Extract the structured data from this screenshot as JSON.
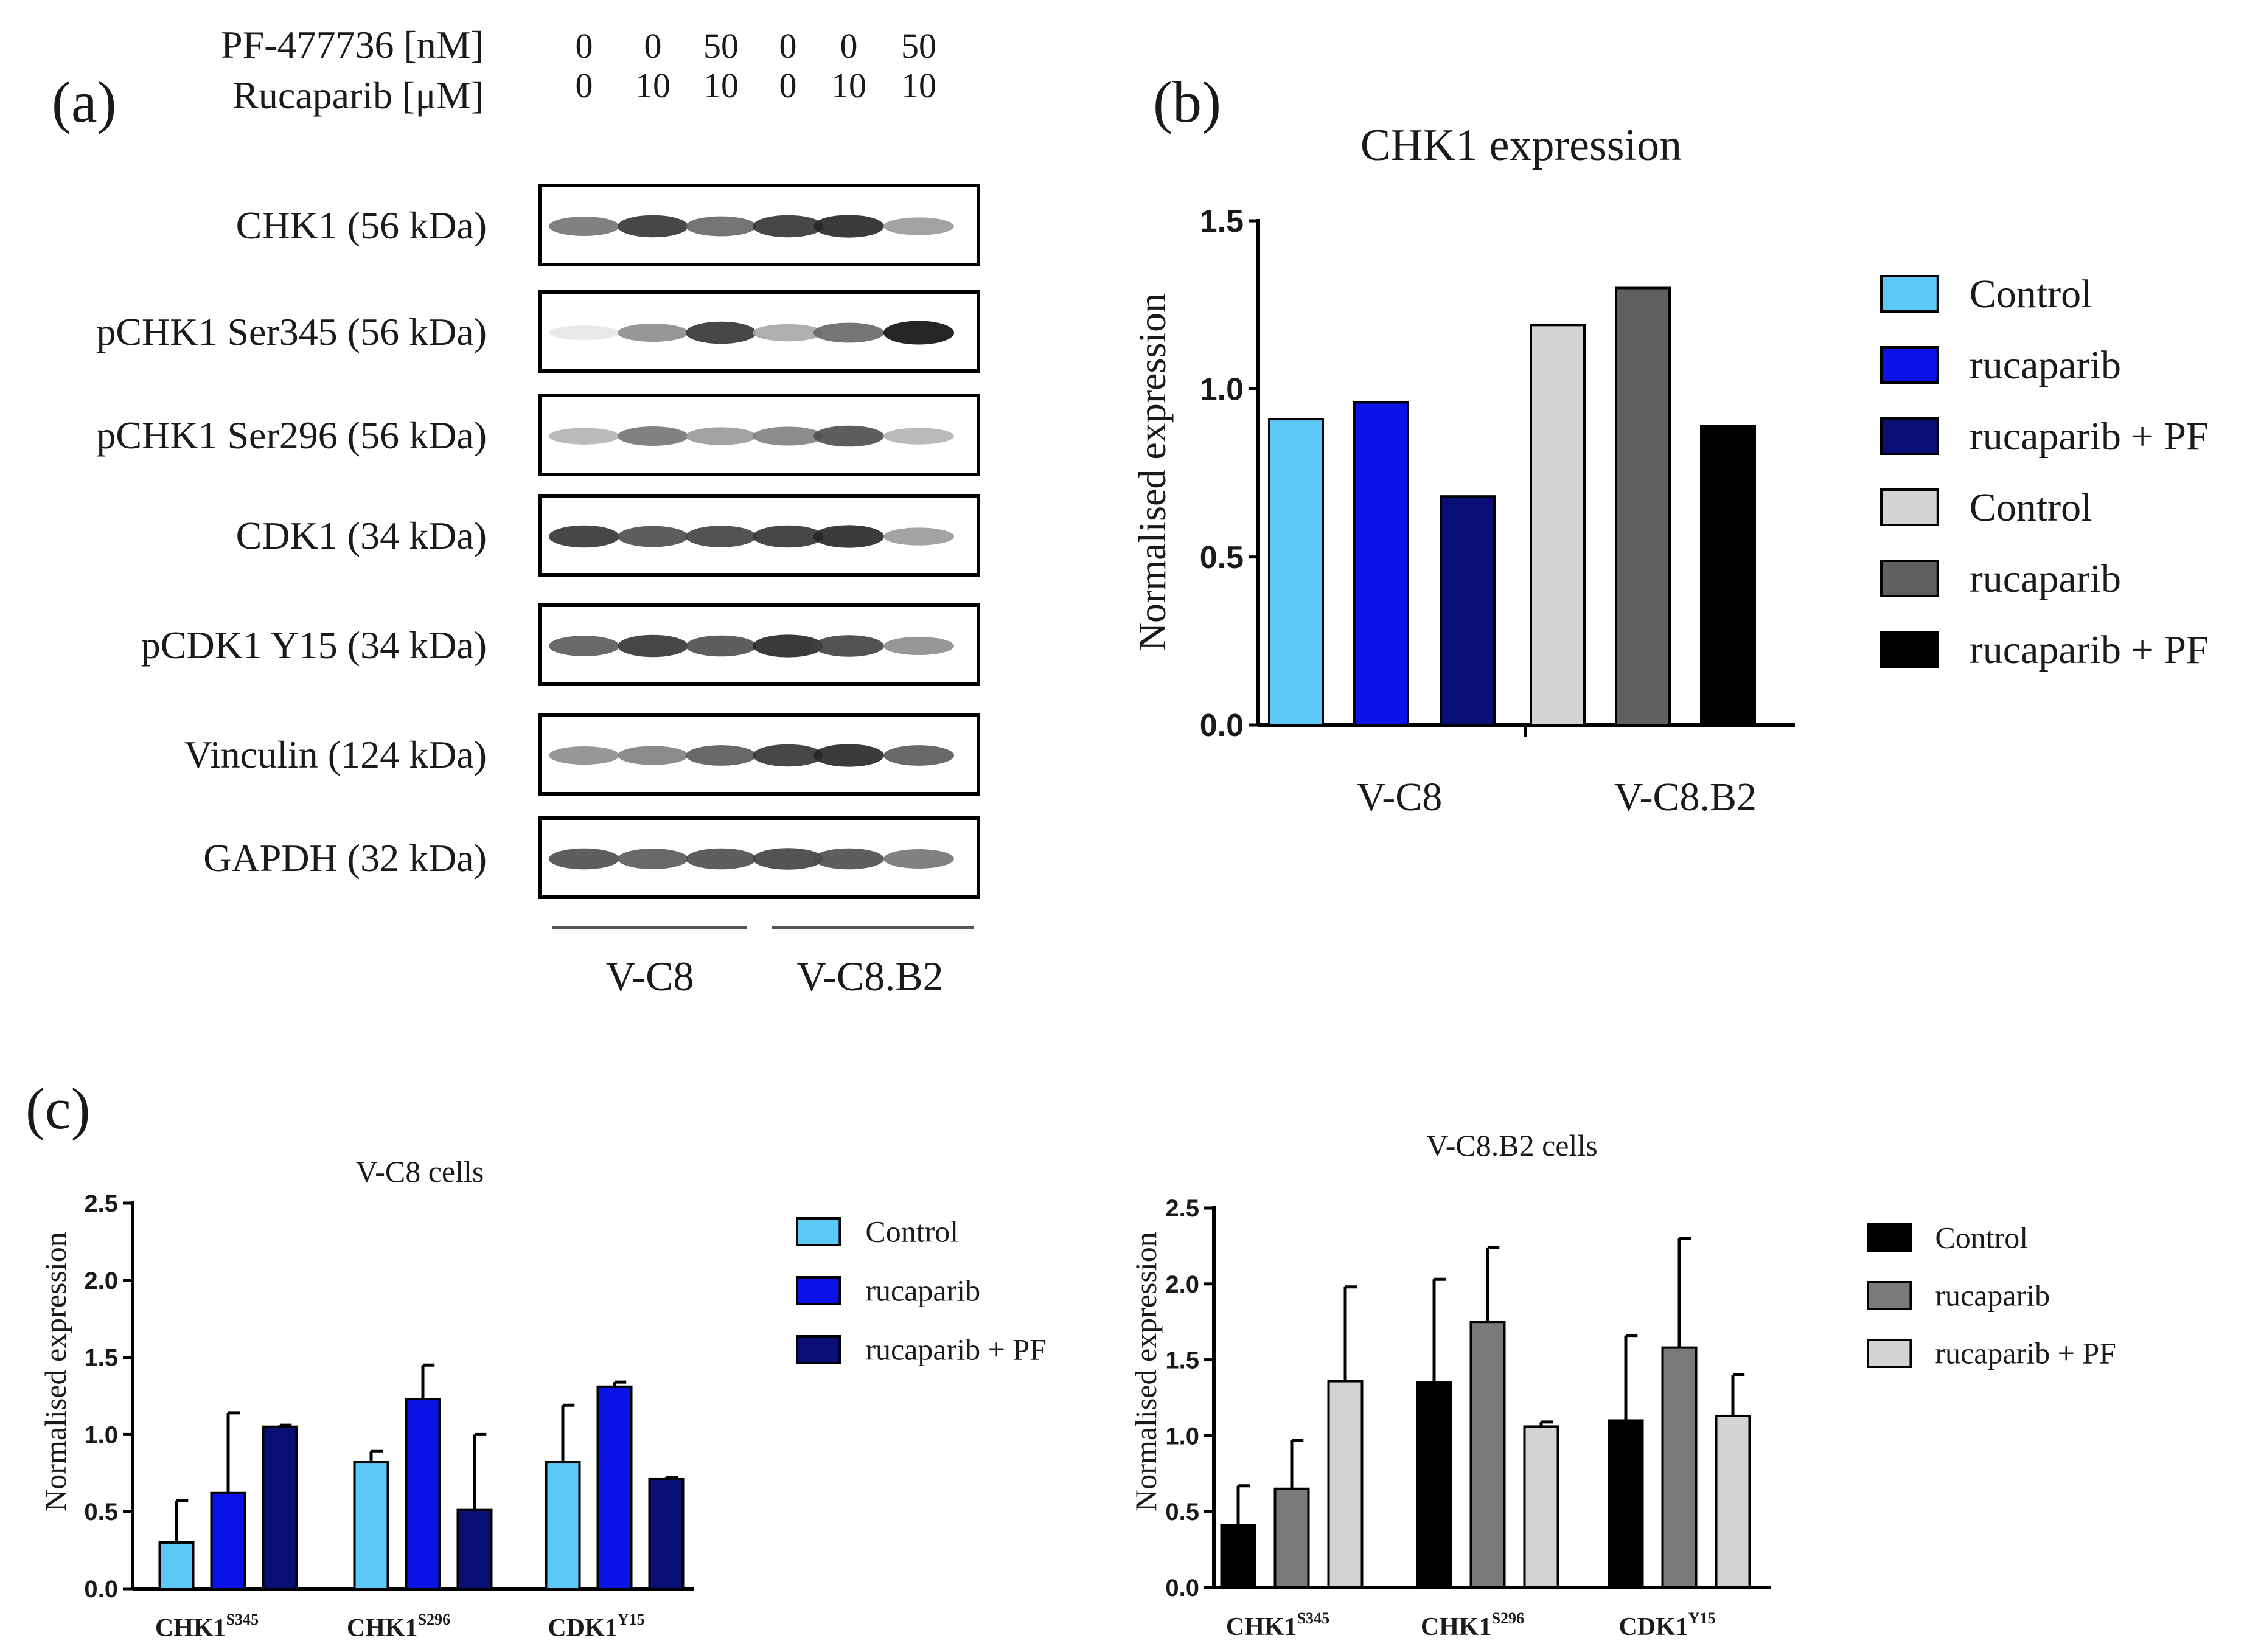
{
  "panel_a": {
    "label": "(a)",
    "treatment_rows": [
      {
        "label": "PF-477736 [nM]",
        "values": [
          "0",
          "0",
          "50",
          "0",
          "0",
          "50"
        ]
      },
      {
        "label": "Rucaparib [μM]",
        "values": [
          "0",
          "10",
          "10",
          "0",
          "10",
          "10"
        ]
      }
    ],
    "blots": [
      {
        "label": "CHK1 (56 kDa)",
        "intensities": [
          0.55,
          0.8,
          0.6,
          0.8,
          0.85,
          0.4
        ]
      },
      {
        "label": "pCHK1 Ser345 (56 kDa)",
        "intensities": [
          0.1,
          0.45,
          0.8,
          0.35,
          0.6,
          0.95
        ]
      },
      {
        "label": "pCHK1 Ser296 (56 kDa)",
        "intensities": [
          0.3,
          0.55,
          0.4,
          0.5,
          0.7,
          0.3
        ]
      },
      {
        "label": "CDK1 (34 kDa)",
        "intensities": [
          0.8,
          0.7,
          0.75,
          0.8,
          0.85,
          0.4
        ]
      },
      {
        "label": "pCDK1 Y15 (34 kDa)",
        "intensities": [
          0.65,
          0.8,
          0.7,
          0.85,
          0.75,
          0.45
        ]
      },
      {
        "label": "Vinculin (124 kDa)",
        "intensities": [
          0.45,
          0.5,
          0.65,
          0.8,
          0.85,
          0.65
        ]
      },
      {
        "label": "GAPDH (32 kDa)",
        "intensities": [
          0.7,
          0.65,
          0.7,
          0.75,
          0.7,
          0.55
        ]
      }
    ],
    "groups": [
      "V-C8",
      "V-C8.B2"
    ]
  },
  "panel_b": {
    "label": "(b)"
  },
  "panel_c": {
    "label": "(c)"
  },
  "chart_data": [
    {
      "id": "b",
      "type": "bar",
      "title": "CHK1 expression",
      "xlabel": "",
      "ylabel": "Normalised expression",
      "ylim": [
        0,
        1.5
      ],
      "yticks": [
        0.0,
        0.5,
        1.0,
        1.5
      ],
      "ytick_labels": [
        "0.0",
        "0.5",
        "1.0",
        "1.5"
      ],
      "categories": [
        "V-C8",
        "V-C8.B2"
      ],
      "series": [
        {
          "name": "Control",
          "color": "#5bc8f5",
          "values": [
            0.91,
            null
          ]
        },
        {
          "name": "rucaparib",
          "color": "#0a12e6",
          "values": [
            0.96,
            null
          ]
        },
        {
          "name": "rucaparib + PF",
          "color": "#0a0f78",
          "values": [
            0.68,
            null
          ]
        },
        {
          "name": "Control",
          "color": "#d3d3d3",
          "values": [
            null,
            1.19
          ]
        },
        {
          "name": "rucaparib",
          "color": "#5f5f5f",
          "values": [
            null,
            1.3
          ]
        },
        {
          "name": "rucaparib + PF",
          "color": "#000000",
          "values": [
            null,
            0.89
          ]
        }
      ],
      "legend": "right"
    },
    {
      "id": "c1",
      "type": "bar",
      "title": "V-C8 cells",
      "xlabel": "",
      "ylabel": "Normalised expression",
      "ylim": [
        0,
        2.5
      ],
      "yticks": [
        0.0,
        0.5,
        1.0,
        1.5,
        2.0,
        2.5
      ],
      "ytick_labels": [
        "0.0",
        "0.5",
        "1.0",
        "1.5",
        "2.0",
        "2.5"
      ],
      "categories": [
        {
          "base": "CHK1",
          "sup": "S345"
        },
        {
          "base": "CHK1",
          "sup": "S296"
        },
        {
          "base": "CDK1",
          "sup": "Y15"
        }
      ],
      "series": [
        {
          "name": "Control",
          "color": "#5bc8f5",
          "values": [
            0.3,
            0.82,
            0.82
          ],
          "errors": [
            0.27,
            0.07,
            0.37
          ]
        },
        {
          "name": "rucaparib",
          "color": "#0a12e6",
          "values": [
            0.62,
            1.23,
            1.31
          ],
          "errors": [
            0.52,
            0.22,
            0.03
          ]
        },
        {
          "name": "rucaparib + PF",
          "color": "#0a0f78",
          "values": [
            1.05,
            0.51,
            0.71
          ],
          "errors": [
            0.01,
            0.49,
            0.01
          ]
        }
      ],
      "legend": "right"
    },
    {
      "id": "c2",
      "type": "bar",
      "title": "V-C8.B2 cells",
      "xlabel": "",
      "ylabel": "Normalised expression",
      "ylim": [
        0,
        2.5
      ],
      "yticks": [
        0.0,
        0.5,
        1.0,
        1.5,
        2.0,
        2.5
      ],
      "ytick_labels": [
        "0.0",
        "0.5",
        "1.0",
        "1.5",
        "2.0",
        "2.5"
      ],
      "categories": [
        {
          "base": "CHK1",
          "sup": "S345"
        },
        {
          "base": "CHK1",
          "sup": "S296"
        },
        {
          "base": "CDK1",
          "sup": "Y15"
        }
      ],
      "series": [
        {
          "name": "Control",
          "color": "#000000",
          "values": [
            0.41,
            1.35,
            1.1
          ],
          "errors": [
            0.26,
            0.68,
            0.56
          ]
        },
        {
          "name": "rucaparib",
          "color": "#7a7a7a",
          "values": [
            0.65,
            1.75,
            1.58
          ],
          "errors": [
            0.32,
            0.49,
            0.72
          ]
        },
        {
          "name": "rucaparib + PF",
          "color": "#d3d3d3",
          "values": [
            1.36,
            1.06,
            1.13
          ],
          "errors": [
            0.62,
            0.03,
            0.27
          ]
        }
      ],
      "legend": "right"
    }
  ]
}
